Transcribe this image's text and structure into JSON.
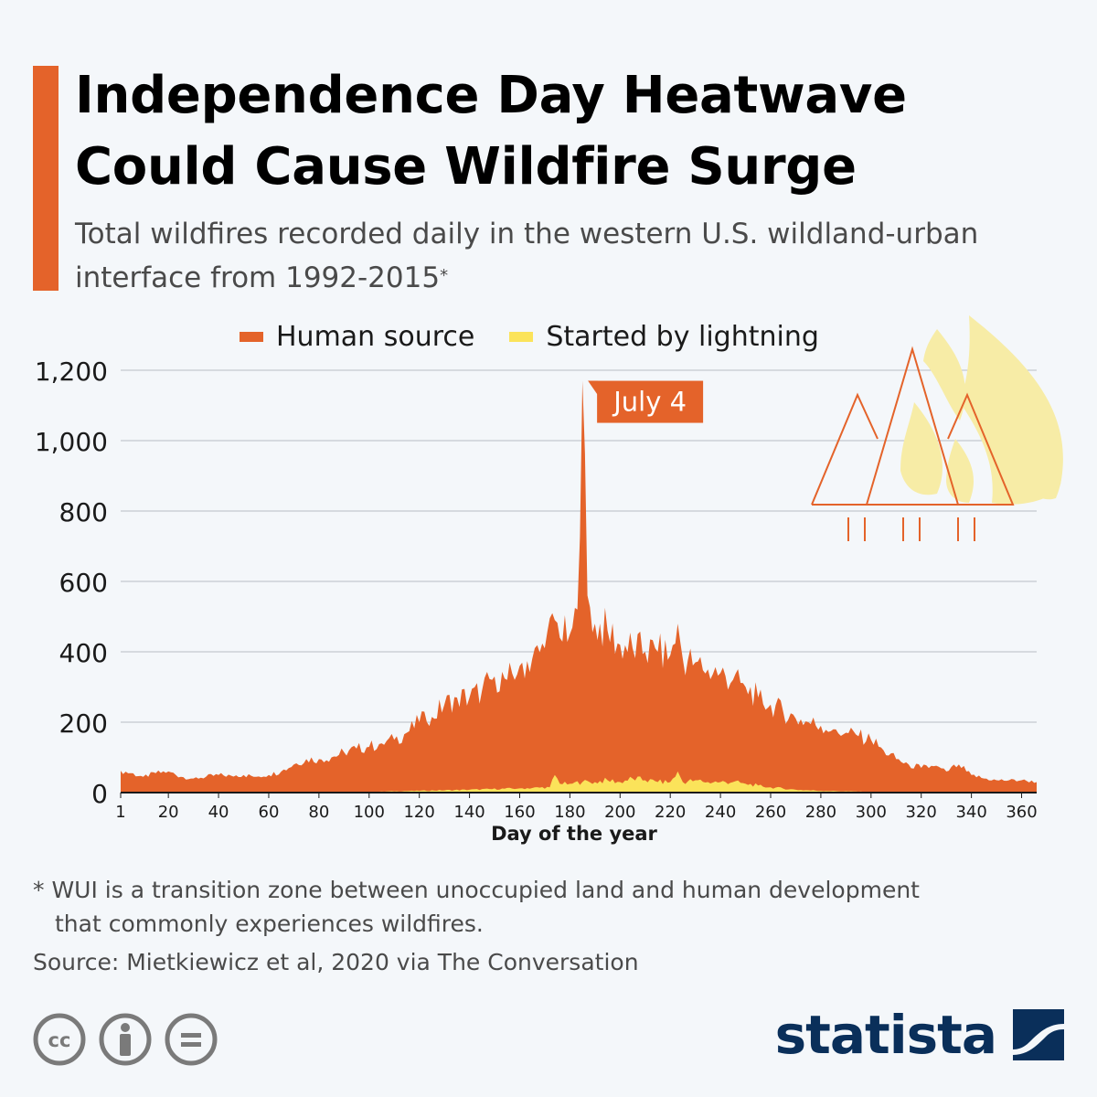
{
  "header": {
    "title": "Independence Day Heatwave Could Cause Wildfire Surge",
    "subtitle": "Total wildfires recorded daily in the western U.S. wildland-urban interface from 1992-2015",
    "subtitle_mark": "*"
  },
  "legend": [
    {
      "label": "Human source",
      "color": "#e4632a"
    },
    {
      "label": "Started by lightning",
      "color": "#fbe35a"
    }
  ],
  "annotation": {
    "text": "July 4",
    "x": 185,
    "y": 1170,
    "color": "#e4632a"
  },
  "chart_data": {
    "type": "area",
    "xlabel": "Day of the year",
    "ylabel": "",
    "x_ticks": [
      1,
      20,
      40,
      60,
      80,
      100,
      120,
      140,
      160,
      180,
      200,
      220,
      240,
      260,
      280,
      300,
      320,
      340,
      360
    ],
    "y_ticks": [
      0,
      200,
      400,
      600,
      800,
      1000,
      1200
    ],
    "y_tick_labels": [
      "0",
      "200",
      "400",
      "600",
      "800",
      "1,000",
      "1,200"
    ],
    "xlim": [
      1,
      366
    ],
    "ylim": [
      0,
      1200
    ],
    "grid": true,
    "stacked": false,
    "series": [
      {
        "name": "Human source",
        "color": "#e4632a",
        "points": [
          [
            1,
            62
          ],
          [
            5,
            55
          ],
          [
            10,
            45
          ],
          [
            15,
            55
          ],
          [
            20,
            60
          ],
          [
            25,
            45
          ],
          [
            30,
            40
          ],
          [
            35,
            45
          ],
          [
            40,
            50
          ],
          [
            45,
            48
          ],
          [
            50,
            50
          ],
          [
            55,
            45
          ],
          [
            60,
            50
          ],
          [
            65,
            60
          ],
          [
            70,
            80
          ],
          [
            75,
            95
          ],
          [
            80,
            95
          ],
          [
            85,
            100
          ],
          [
            90,
            115
          ],
          [
            95,
            125
          ],
          [
            100,
            130
          ],
          [
            105,
            140
          ],
          [
            110,
            150
          ],
          [
            115,
            170
          ],
          [
            120,
            200
          ],
          [
            122,
            230
          ],
          [
            125,
            215
          ],
          [
            130,
            250
          ],
          [
            135,
            270
          ],
          [
            140,
            270
          ],
          [
            145,
            290
          ],
          [
            150,
            330
          ],
          [
            155,
            320
          ],
          [
            160,
            360
          ],
          [
            165,
            380
          ],
          [
            170,
            410
          ],
          [
            174,
            490
          ],
          [
            176,
            440
          ],
          [
            180,
            450
          ],
          [
            183,
            520
          ],
          [
            185,
            1170
          ],
          [
            187,
            560
          ],
          [
            190,
            480
          ],
          [
            195,
            460
          ],
          [
            200,
            420
          ],
          [
            205,
            410
          ],
          [
            210,
            400
          ],
          [
            215,
            400
          ],
          [
            220,
            390
          ],
          [
            223,
            480
          ],
          [
            225,
            380
          ],
          [
            230,
            370
          ],
          [
            235,
            350
          ],
          [
            240,
            340
          ],
          [
            245,
            320
          ],
          [
            250,
            300
          ],
          [
            255,
            270
          ],
          [
            260,
            250
          ],
          [
            265,
            230
          ],
          [
            270,
            210
          ],
          [
            275,
            200
          ],
          [
            280,
            190
          ],
          [
            285,
            180
          ],
          [
            290,
            170
          ],
          [
            295,
            160
          ],
          [
            300,
            150
          ],
          [
            305,
            120
          ],
          [
            310,
            95
          ],
          [
            315,
            80
          ],
          [
            320,
            70
          ],
          [
            325,
            75
          ],
          [
            330,
            60
          ],
          [
            335,
            80
          ],
          [
            338,
            60
          ],
          [
            340,
            50
          ],
          [
            345,
            40
          ],
          [
            350,
            35
          ],
          [
            355,
            35
          ],
          [
            360,
            35
          ],
          [
            366,
            30
          ]
        ]
      },
      {
        "name": "Started by lightning",
        "color": "#fbe35a",
        "points": [
          [
            1,
            0
          ],
          [
            100,
            2
          ],
          [
            120,
            5
          ],
          [
            140,
            8
          ],
          [
            160,
            12
          ],
          [
            172,
            15
          ],
          [
            174,
            50
          ],
          [
            176,
            25
          ],
          [
            180,
            25
          ],
          [
            185,
            30
          ],
          [
            190,
            30
          ],
          [
            195,
            35
          ],
          [
            200,
            30
          ],
          [
            205,
            40
          ],
          [
            210,
            35
          ],
          [
            215,
            30
          ],
          [
            220,
            30
          ],
          [
            223,
            60
          ],
          [
            225,
            30
          ],
          [
            230,
            35
          ],
          [
            235,
            30
          ],
          [
            240,
            30
          ],
          [
            245,
            30
          ],
          [
            250,
            25
          ],
          [
            255,
            20
          ],
          [
            260,
            15
          ],
          [
            270,
            8
          ],
          [
            280,
            5
          ],
          [
            300,
            2
          ],
          [
            320,
            0
          ],
          [
            366,
            0
          ]
        ]
      }
    ]
  },
  "notes": {
    "footnote_mark": "*",
    "footnote": "WUI is a transition zone between unoccupied land and human development that commonly experiences wildfires.",
    "source": "Source: Mietkiewicz et al, 2020 via The Conversation"
  },
  "brand": {
    "name": "statista",
    "color": "#0a2f5a"
  },
  "license_icons": [
    "creative-commons-icon",
    "attribution-icon",
    "no-derivatives-icon"
  ]
}
